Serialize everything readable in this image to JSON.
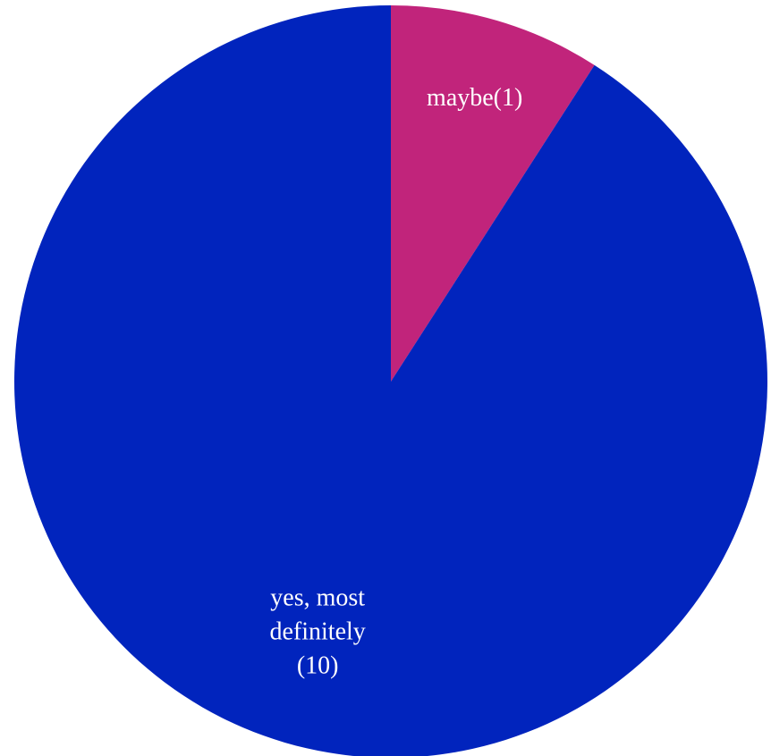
{
  "chart_data": {
    "type": "pie",
    "title": "",
    "slices": [
      {
        "label": "maybe",
        "value": 1,
        "label_lines": [
          "maybe(1)"
        ],
        "color": "#c1247b"
      },
      {
        "label": "yes, most definitely",
        "value": 10,
        "label_lines": [
          "yes, most",
          "definitely",
          "(10)"
        ],
        "color": "#0124bd"
      }
    ],
    "start_angle": "12 o'clock",
    "direction": "clockwise",
    "legend": "none",
    "label_color": "#ffffff"
  }
}
